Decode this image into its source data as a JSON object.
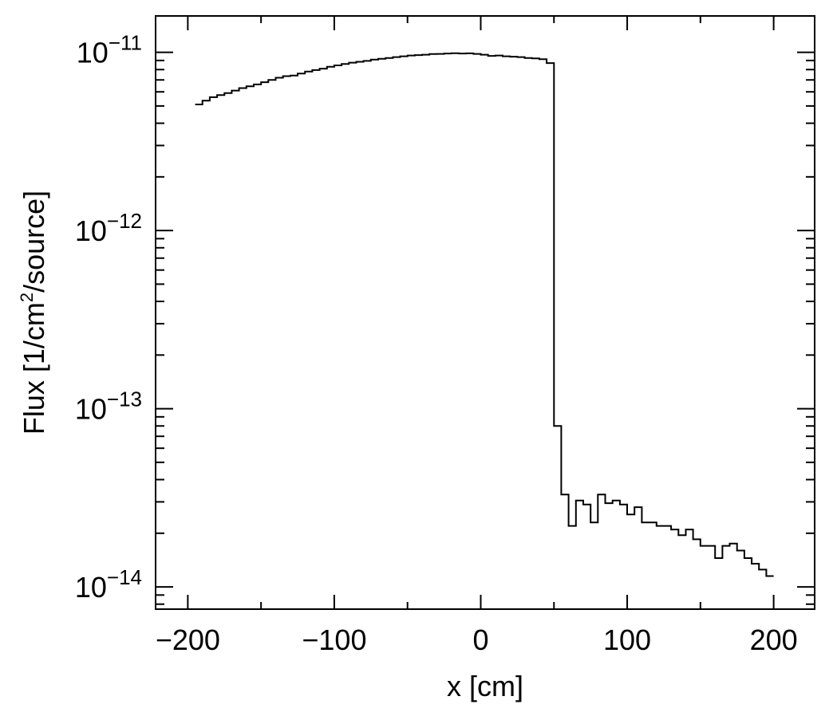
{
  "chart_data": {
    "type": "line",
    "style": "step",
    "title": "",
    "xlabel": "x [cm]",
    "ylabel": {
      "prefix": "Flux [1/cm",
      "sup": "2",
      "suffix": "/source]"
    },
    "xlim": [
      -222,
      228
    ],
    "ylim": [
      7.5e-15,
      1.6e-11
    ],
    "yscale": "log",
    "grid": false,
    "legend": "none",
    "x_ticks": [
      {
        "value": -200,
        "label": "−200"
      },
      {
        "value": -100,
        "label": "−100"
      },
      {
        "value": 0,
        "label": "0"
      },
      {
        "value": 100,
        "label": "100"
      },
      {
        "value": 200,
        "label": "200"
      }
    ],
    "y_ticks": [
      {
        "value": 1e-11,
        "base": "10",
        "exp": "−11"
      },
      {
        "value": 1e-12,
        "base": "10",
        "exp": "−12"
      },
      {
        "value": 1e-13,
        "base": "10",
        "exp": "−13"
      },
      {
        "value": 1e-14,
        "base": "10",
        "exp": "−14"
      }
    ],
    "bin_edges": [
      -195,
      -190,
      -185,
      -180,
      -175,
      -170,
      -165,
      -160,
      -155,
      -150,
      -145,
      -140,
      -135,
      -130,
      -125,
      -120,
      -115,
      -110,
      -105,
      -100,
      -95,
      -90,
      -85,
      -80,
      -75,
      -70,
      -65,
      -60,
      -55,
      -50,
      -45,
      -40,
      -35,
      -30,
      -25,
      -20,
      -15,
      -10,
      -5,
      0,
      5,
      10,
      15,
      20,
      25,
      30,
      35,
      40,
      45,
      50,
      55,
      60,
      65,
      70,
      75,
      80,
      85,
      90,
      95,
      100,
      105,
      110,
      115,
      120,
      125,
      130,
      135,
      140,
      145,
      150,
      155,
      160,
      165,
      170,
      175,
      180,
      185,
      190,
      195,
      200
    ],
    "series": [
      {
        "color": "#000000",
        "values": [
          5.1e-12,
          5.35e-12,
          5.6e-12,
          5.75e-12,
          5.9e-12,
          6.1e-12,
          6.3e-12,
          6.45e-12,
          6.6e-12,
          6.8e-12,
          7e-12,
          7.2e-12,
          7.35e-12,
          7.4e-12,
          7.6e-12,
          7.8e-12,
          7.95e-12,
          8.1e-12,
          8.3e-12,
          8.45e-12,
          8.6e-12,
          8.75e-12,
          8.85e-12,
          8.95e-12,
          9.1e-12,
          9.2e-12,
          9.3e-12,
          9.4e-12,
          9.5e-12,
          9.6e-12,
          9.65e-12,
          9.7e-12,
          9.78e-12,
          9.8e-12,
          9.85e-12,
          9.88e-12,
          9.85e-12,
          9.87e-12,
          9.8e-12,
          9.7e-12,
          9.55e-12,
          9.6e-12,
          9.5e-12,
          9.45e-12,
          9.4e-12,
          9.3e-12,
          9.25e-12,
          9.15e-12,
          8.7e-12,
          8e-14,
          3.3e-14,
          2.2e-14,
          3.05e-14,
          2.9e-14,
          2.3e-14,
          3.3e-14,
          2.95e-14,
          3.05e-14,
          2.9e-14,
          2.55e-14,
          2.8e-14,
          2.3e-14,
          2.3e-14,
          2.2e-14,
          2.2e-14,
          2.1e-14,
          1.95e-14,
          2.1e-14,
          1.85e-14,
          1.7e-14,
          1.7e-14,
          1.45e-14,
          1.7e-14,
          1.75e-14,
          1.6e-14,
          1.45e-14,
          1.35e-14,
          1.25e-14,
          1.15e-14
        ]
      }
    ]
  }
}
